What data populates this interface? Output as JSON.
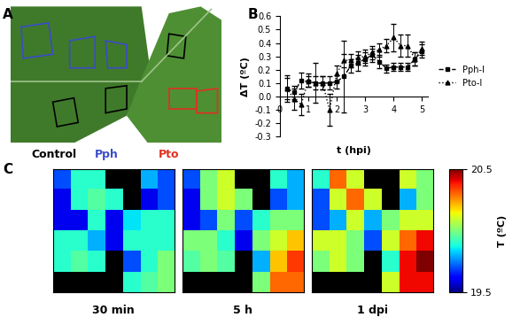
{
  "panel_labels": [
    "A",
    "B",
    "C"
  ],
  "panel_a": {
    "items": [
      {
        "label": "Control",
        "color": "#000000"
      },
      {
        "label": "Pph",
        "color": "#3b4bc8"
      },
      {
        "label": "Pto",
        "color": "#e03020"
      }
    ]
  },
  "chart_data": {
    "type": "line",
    "xlabel": "t (hpi)",
    "ylabel": "ΔT (ºC)",
    "xlim": [
      0,
      5.2
    ],
    "xticks": [
      0,
      1,
      2,
      3,
      4,
      5
    ],
    "ylim": [
      -0.3,
      0.6
    ],
    "yticks": [
      -0.3,
      -0.2,
      -0.1,
      0.0,
      0.1,
      0.2,
      0.3,
      0.4,
      0.5,
      0.6
    ],
    "legend": "right",
    "x": [
      0.25,
      0.5,
      0.75,
      1.0,
      1.25,
      1.5,
      1.75,
      2.0,
      2.25,
      2.5,
      2.75,
      3.0,
      3.25,
      3.5,
      3.75,
      4.0,
      4.25,
      4.5,
      4.75,
      5.0
    ],
    "series": [
      {
        "name": "Pph-I",
        "color": "#000000",
        "marker": "square",
        "line_style": "dashed",
        "values": [
          0.06,
          0.03,
          0.12,
          0.11,
          0.1,
          0.1,
          0.1,
          0.11,
          0.15,
          0.23,
          0.25,
          0.28,
          0.31,
          0.26,
          0.21,
          0.22,
          0.22,
          0.22,
          0.28,
          0.34
        ],
        "errors": [
          0.1,
          0.05,
          0.06,
          0.04,
          0.15,
          0.05,
          0.05,
          0.05,
          0.27,
          0.05,
          0.06,
          0.05,
          0.05,
          0.05,
          0.03,
          0.03,
          0.03,
          0.03,
          0.05,
          0.05
        ]
      },
      {
        "name": "Pto-I",
        "color": "#000000",
        "marker": "triangle",
        "line_style": "dotted",
        "values": [
          0.06,
          -0.02,
          -0.06,
          0.12,
          0.1,
          0.1,
          -0.1,
          0.17,
          0.27,
          0.27,
          0.29,
          0.3,
          0.33,
          0.35,
          0.38,
          0.44,
          0.38,
          0.38,
          0.28,
          0.36
        ],
        "errors": [
          0.08,
          0.08,
          0.08,
          0.05,
          0.05,
          0.05,
          0.12,
          0.06,
          0.05,
          0.05,
          0.05,
          0.05,
          0.05,
          0.05,
          0.05,
          0.1,
          0.08,
          0.08,
          0.05,
          0.05
        ]
      }
    ]
  },
  "panel_c": {
    "type": "heatmap",
    "images": [
      {
        "label": "30 min",
        "cells": [
          [
            19.7,
            19.9,
            19.9,
            null,
            null,
            19.8,
            19.7
          ],
          [
            19.6,
            19.9,
            19.95,
            19.9,
            null,
            19.6,
            19.7
          ],
          [
            19.6,
            19.6,
            19.9,
            19.6,
            19.85,
            19.9,
            19.9
          ],
          [
            19.9,
            19.9,
            19.8,
            19.6,
            19.9,
            19.9,
            19.9
          ],
          [
            19.9,
            19.95,
            19.9,
            null,
            19.7,
            19.9,
            20.0
          ],
          [
            null,
            null,
            null,
            null,
            19.9,
            19.95,
            20.0
          ]
        ]
      },
      {
        "label": "5 h",
        "cells": [
          [
            19.7,
            20.0,
            20.1,
            null,
            null,
            19.9,
            19.8
          ],
          [
            19.6,
            20.0,
            20.1,
            20.0,
            null,
            19.7,
            19.8
          ],
          [
            19.6,
            19.7,
            20.0,
            19.7,
            19.9,
            20.0,
            20.0
          ],
          [
            20.0,
            20.0,
            19.9,
            19.6,
            20.0,
            20.1,
            20.2
          ],
          [
            19.95,
            20.0,
            19.95,
            null,
            19.8,
            20.2,
            20.35
          ],
          [
            null,
            null,
            null,
            null,
            20.0,
            20.3,
            20.3
          ]
        ]
      },
      {
        "label": "1 dpi",
        "cells": [
          [
            19.9,
            20.3,
            20.1,
            null,
            null,
            20.1,
            20.0
          ],
          [
            19.7,
            20.1,
            20.3,
            20.1,
            null,
            19.8,
            20.0
          ],
          [
            19.7,
            19.8,
            20.1,
            19.8,
            20.0,
            20.1,
            20.1
          ],
          [
            20.1,
            20.1,
            20.0,
            19.7,
            20.1,
            20.3,
            20.4
          ],
          [
            20.0,
            20.1,
            20.0,
            null,
            19.9,
            20.4,
            20.5
          ],
          [
            null,
            null,
            null,
            null,
            20.1,
            20.4,
            20.4
          ]
        ]
      }
    ],
    "colorbar": {
      "label": "T (ºC)",
      "range": [
        19.5,
        20.5
      ],
      "ticks": [
        19.5,
        20.5
      ]
    }
  }
}
